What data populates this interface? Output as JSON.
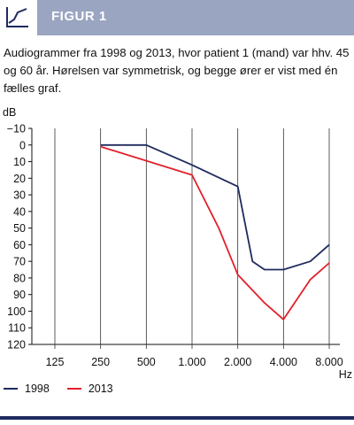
{
  "header": {
    "title": "FIGUR 1",
    "icon": "line-chart-icon",
    "bar_color": "#9aa5c2"
  },
  "caption": "Audiogrammer fra 1998 og 2013, hvor patient 1 (mand) var hhv. 45 og 60 år. Hørelsen var symmetrisk, og begge ører er vist med én fælles graf.",
  "chart_data": {
    "type": "line",
    "title": "",
    "ylabel": "dB",
    "xlabel": "Hz",
    "x_scale": "log",
    "y_inverted": true,
    "ylim": [
      -10,
      120
    ],
    "yticks": [
      -10,
      0,
      10,
      20,
      30,
      40,
      50,
      60,
      70,
      80,
      90,
      100,
      110,
      120
    ],
    "xticks": [
      {
        "value": 125,
        "label": "125"
      },
      {
        "value": 250,
        "label": "250"
      },
      {
        "value": 500,
        "label": "500"
      },
      {
        "value": 1000,
        "label": "1.000"
      },
      {
        "value": 2000,
        "label": "2.000"
      },
      {
        "value": 4000,
        "label": "4.000"
      },
      {
        "value": 8000,
        "label": "8.000"
      }
    ],
    "grid_vertical": true,
    "legend_position": "bottom-left",
    "series": [
      {
        "name": "1998",
        "color": "#1f2b5e",
        "points": [
          [
            250,
            0
          ],
          [
            500,
            0
          ],
          [
            1000,
            12
          ],
          [
            2000,
            25
          ],
          [
            2500,
            70
          ],
          [
            3000,
            75
          ],
          [
            4000,
            75
          ],
          [
            6000,
            70
          ],
          [
            8000,
            60
          ]
        ]
      },
      {
        "name": "2013",
        "color": "#e2202a",
        "points": [
          [
            250,
            1
          ],
          [
            1000,
            18
          ],
          [
            1500,
            50
          ],
          [
            2000,
            78
          ],
          [
            3000,
            95
          ],
          [
            4000,
            105
          ],
          [
            6000,
            81
          ],
          [
            8000,
            71
          ]
        ]
      }
    ]
  }
}
